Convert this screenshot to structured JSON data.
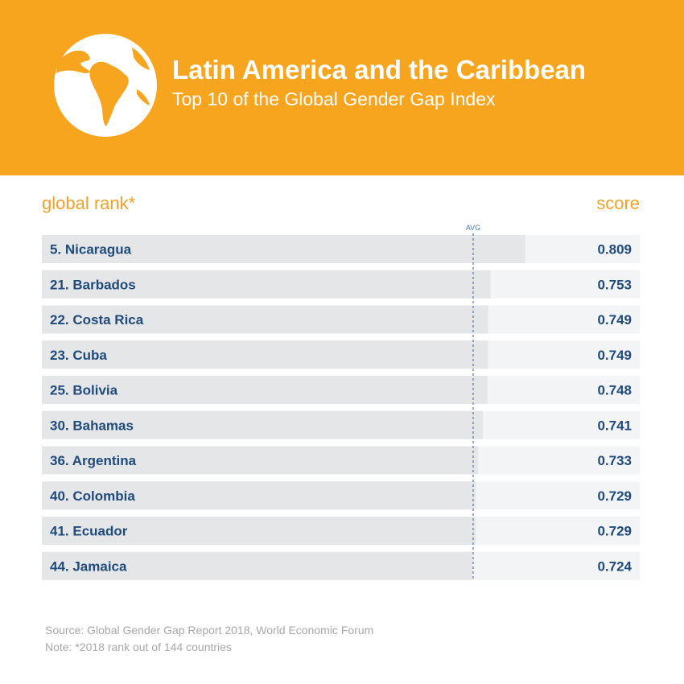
{
  "header": {
    "title": "Latin America and the Caribbean",
    "subtitle": "Top 10 of the Global Gender Gap Index",
    "icon": "globe-icon"
  },
  "columns": {
    "rank_label": "global rank*",
    "score_label": "score"
  },
  "chart_data": {
    "type": "bar",
    "orientation": "horizontal",
    "title": "Latin America and the Caribbean",
    "subtitle": "Top 10 of the Global Gender Gap Index",
    "categories": [
      "5. Nicaragua",
      "21. Barbados",
      "22. Costa Rica",
      "23. Cuba",
      "25. Bolivia",
      "30. Bahamas",
      "36. Argentina",
      "40. Colombia",
      "41. Ecuador",
      "44. Jamaica"
    ],
    "values": [
      0.809,
      0.753,
      0.749,
      0.749,
      0.748,
      0.741,
      0.733,
      0.729,
      0.729,
      0.724
    ],
    "value_labels": [
      "0.809",
      "0.753",
      "0.749",
      "0.749",
      "0.748",
      "0.741",
      "0.733",
      "0.729",
      "0.729",
      "0.724"
    ],
    "average": {
      "label": "AVG",
      "value": 0.725
    },
    "xlim": [
      0,
      1
    ],
    "grid": false,
    "legend": "none"
  },
  "footer": {
    "source": "Source: Global Gender Gap Report 2018,  World Economic Forum",
    "note": "Note: *2018 rank out of 144 countries"
  },
  "colors": {
    "header_bg": "#f7a51e",
    "accent_text": "#f0a227",
    "label_text": "#1f4a7c",
    "row_bg": "#f3f4f6",
    "bar_fill": "#e5e6e7",
    "avg_line": "#4a78b0",
    "footer_text": "#a7a7a7"
  }
}
